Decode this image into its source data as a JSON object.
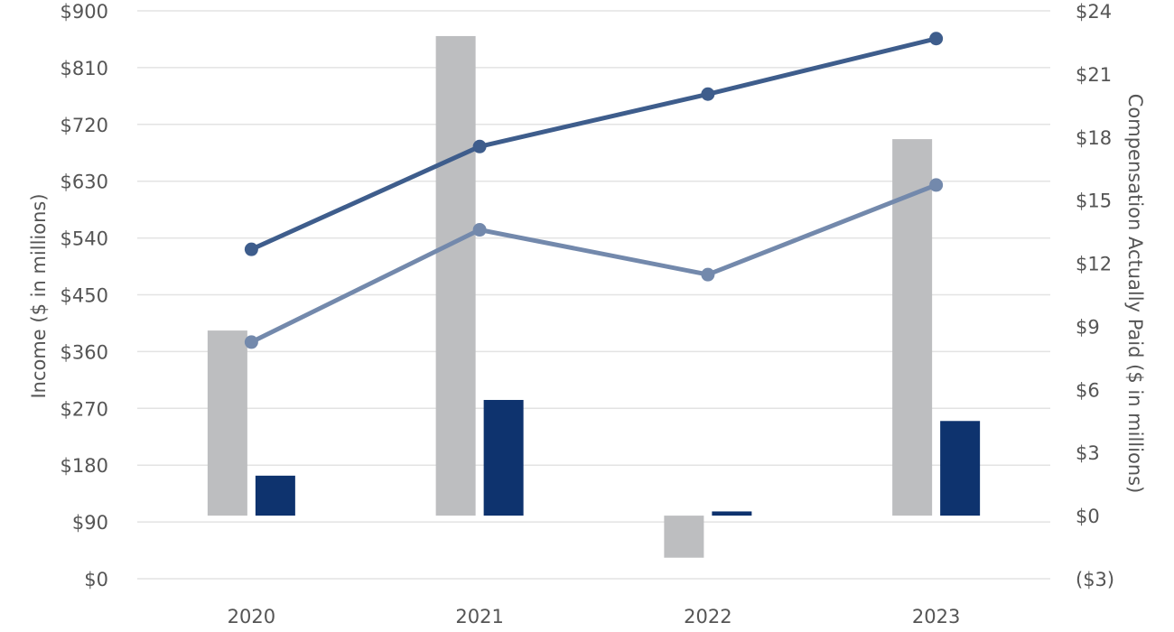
{
  "chart_data": {
    "type": "bar",
    "categories": [
      "2020",
      "2021",
      "2022",
      "2023"
    ],
    "y_left": {
      "label": "Income ($ in millions)",
      "range": [
        0,
        900
      ],
      "ticks": [
        0,
        90,
        180,
        270,
        360,
        450,
        540,
        630,
        720,
        810,
        900
      ],
      "tick_labels": [
        "$0",
        "$90",
        "$180",
        "$270",
        "$360",
        "$450",
        "$540",
        "$630",
        "$720",
        "$810",
        "$900"
      ]
    },
    "y_right": {
      "label": "Compensation Actually Paid ($ in millions)",
      "range": [
        -3,
        24
      ],
      "ticks": [
        -3,
        0,
        3,
        6,
        9,
        12,
        15,
        18,
        21,
        24
      ],
      "tick_labels": [
        "($3)",
        "$0",
        "$3",
        "$6",
        "$9",
        "$12",
        "$15",
        "$18",
        "$21",
        "$24"
      ]
    },
    "grid": true,
    "legend": "none",
    "bar_series": [
      {
        "axis": "right",
        "color": "#bdbec0",
        "values": [
          8.8,
          22.8,
          -2.0,
          17.9
        ]
      },
      {
        "axis": "right",
        "color": "#0e336e",
        "values": [
          1.9,
          5.5,
          0.2,
          4.5
        ]
      }
    ],
    "line_series": [
      {
        "axis": "left",
        "color": "#3e5d8c",
        "values": [
          522,
          685,
          768,
          856
        ]
      },
      {
        "axis": "left",
        "color": "#7389ac",
        "values": [
          375,
          553,
          482,
          624
        ]
      }
    ]
  }
}
